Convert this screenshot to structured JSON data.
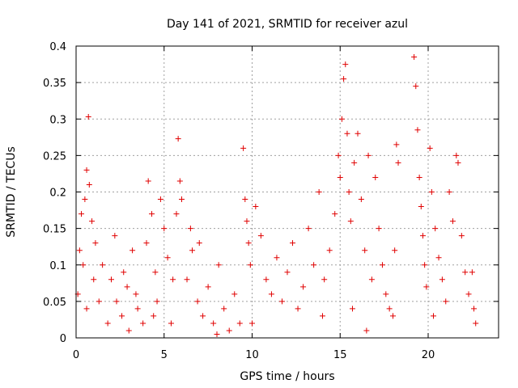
{
  "chart_data": {
    "type": "scatter",
    "title": "Day 141 of 2021, SRMTID for receiver azul",
    "xlabel": "GPS time / hours",
    "ylabel": "SRMTID / TECUs",
    "xlim": [
      0,
      24
    ],
    "ylim": [
      0,
      0.4
    ],
    "x_ticks": [
      0,
      5,
      10,
      15,
      20
    ],
    "x_tick_labels": [
      "0",
      "5",
      "10",
      "15",
      "20"
    ],
    "y_ticks": [
      0,
      0.05,
      0.1,
      0.15,
      0.2,
      0.25,
      0.3,
      0.35,
      0.4
    ],
    "y_tick_labels": [
      "0",
      "0.05",
      "0.1",
      "0.15",
      "0.2",
      "0.25",
      "0.3",
      "0.35",
      "0.4"
    ],
    "grid": true,
    "marker": "plus",
    "color": "#e00000",
    "series": [
      {
        "values": [
          [
            0.7,
            0.303
          ],
          [
            0.6,
            0.23
          ],
          [
            0.75,
            0.21
          ],
          [
            0.5,
            0.19
          ],
          [
            0.3,
            0.17
          ],
          [
            0.9,
            0.16
          ],
          [
            0.2,
            0.12
          ],
          [
            1.1,
            0.13
          ],
          [
            0.4,
            0.1
          ],
          [
            1.0,
            0.08
          ],
          [
            0.1,
            0.06
          ],
          [
            1.3,
            0.05
          ],
          [
            0.6,
            0.04
          ],
          [
            1.5,
            0.1
          ],
          [
            2.0,
            0.08
          ],
          [
            2.3,
            0.05
          ],
          [
            2.6,
            0.03
          ],
          [
            2.9,
            0.07
          ],
          [
            3.2,
            0.12
          ],
          [
            3.5,
            0.04
          ],
          [
            3.8,
            0.02
          ],
          [
            2.2,
            0.14
          ],
          [
            3.0,
            0.01
          ],
          [
            1.8,
            0.02
          ],
          [
            2.7,
            0.09
          ],
          [
            3.4,
            0.06
          ],
          [
            4.1,
            0.215
          ],
          [
            4.3,
            0.17
          ],
          [
            4.0,
            0.13
          ],
          [
            4.5,
            0.09
          ],
          [
            4.8,
            0.19
          ],
          [
            5.0,
            0.15
          ],
          [
            4.6,
            0.05
          ],
          [
            5.2,
            0.11
          ],
          [
            5.5,
            0.08
          ],
          [
            5.8,
            0.273
          ],
          [
            5.9,
            0.215
          ],
          [
            6.0,
            0.19
          ],
          [
            5.7,
            0.17
          ],
          [
            5.4,
            0.02
          ],
          [
            4.4,
            0.03
          ],
          [
            6.3,
            0.08
          ],
          [
            6.6,
            0.12
          ],
          [
            6.9,
            0.05
          ],
          [
            7.2,
            0.03
          ],
          [
            7.5,
            0.07
          ],
          [
            7.8,
            0.02
          ],
          [
            8.1,
            0.1
          ],
          [
            8.4,
            0.04
          ],
          [
            8.7,
            0.01
          ],
          [
            9.0,
            0.06
          ],
          [
            9.3,
            0.02
          ],
          [
            7.0,
            0.13
          ],
          [
            6.5,
            0.15
          ],
          [
            8.0,
            0.005
          ],
          [
            9.5,
            0.26
          ],
          [
            9.6,
            0.19
          ],
          [
            9.7,
            0.16
          ],
          [
            9.8,
            0.13
          ],
          [
            9.9,
            0.1
          ],
          [
            10.2,
            0.18
          ],
          [
            10.5,
            0.14
          ],
          [
            10.8,
            0.08
          ],
          [
            11.1,
            0.06
          ],
          [
            11.4,
            0.11
          ],
          [
            11.7,
            0.05
          ],
          [
            12.0,
            0.09
          ],
          [
            12.3,
            0.13
          ],
          [
            12.6,
            0.04
          ],
          [
            12.9,
            0.07
          ],
          [
            13.2,
            0.15
          ],
          [
            13.5,
            0.1
          ],
          [
            13.8,
            0.2
          ],
          [
            14.1,
            0.08
          ],
          [
            14.4,
            0.12
          ],
          [
            14.7,
            0.17
          ],
          [
            14.0,
            0.03
          ],
          [
            10.0,
            0.02
          ],
          [
            14.9,
            0.25
          ],
          [
            15.0,
            0.22
          ],
          [
            15.1,
            0.3
          ],
          [
            15.2,
            0.355
          ],
          [
            15.3,
            0.375
          ],
          [
            15.4,
            0.28
          ],
          [
            15.5,
            0.2
          ],
          [
            15.6,
            0.16
          ],
          [
            15.8,
            0.24
          ],
          [
            16.0,
            0.28
          ],
          [
            16.2,
            0.19
          ],
          [
            16.4,
            0.12
          ],
          [
            16.6,
            0.25
          ],
          [
            16.8,
            0.08
          ],
          [
            17.0,
            0.22
          ],
          [
            17.2,
            0.15
          ],
          [
            17.4,
            0.1
          ],
          [
            17.6,
            0.06
          ],
          [
            17.8,
            0.04
          ],
          [
            18.0,
            0.03
          ],
          [
            18.2,
            0.265
          ],
          [
            18.3,
            0.24
          ],
          [
            18.1,
            0.12
          ],
          [
            15.7,
            0.04
          ],
          [
            16.5,
            0.01
          ],
          [
            19.2,
            0.385
          ],
          [
            19.3,
            0.345
          ],
          [
            19.4,
            0.285
          ],
          [
            19.5,
            0.22
          ],
          [
            19.6,
            0.18
          ],
          [
            19.7,
            0.14
          ],
          [
            19.8,
            0.1
          ],
          [
            19.9,
            0.07
          ],
          [
            20.1,
            0.26
          ],
          [
            20.2,
            0.2
          ],
          [
            20.4,
            0.15
          ],
          [
            20.6,
            0.11
          ],
          [
            20.8,
            0.08
          ],
          [
            21.0,
            0.05
          ],
          [
            21.2,
            0.2
          ],
          [
            21.4,
            0.16
          ],
          [
            21.6,
            0.25
          ],
          [
            21.7,
            0.24
          ],
          [
            21.9,
            0.14
          ],
          [
            22.1,
            0.09
          ],
          [
            22.3,
            0.06
          ],
          [
            22.5,
            0.09
          ],
          [
            22.6,
            0.04
          ],
          [
            22.7,
            0.02
          ],
          [
            20.3,
            0.03
          ]
        ]
      }
    ]
  }
}
